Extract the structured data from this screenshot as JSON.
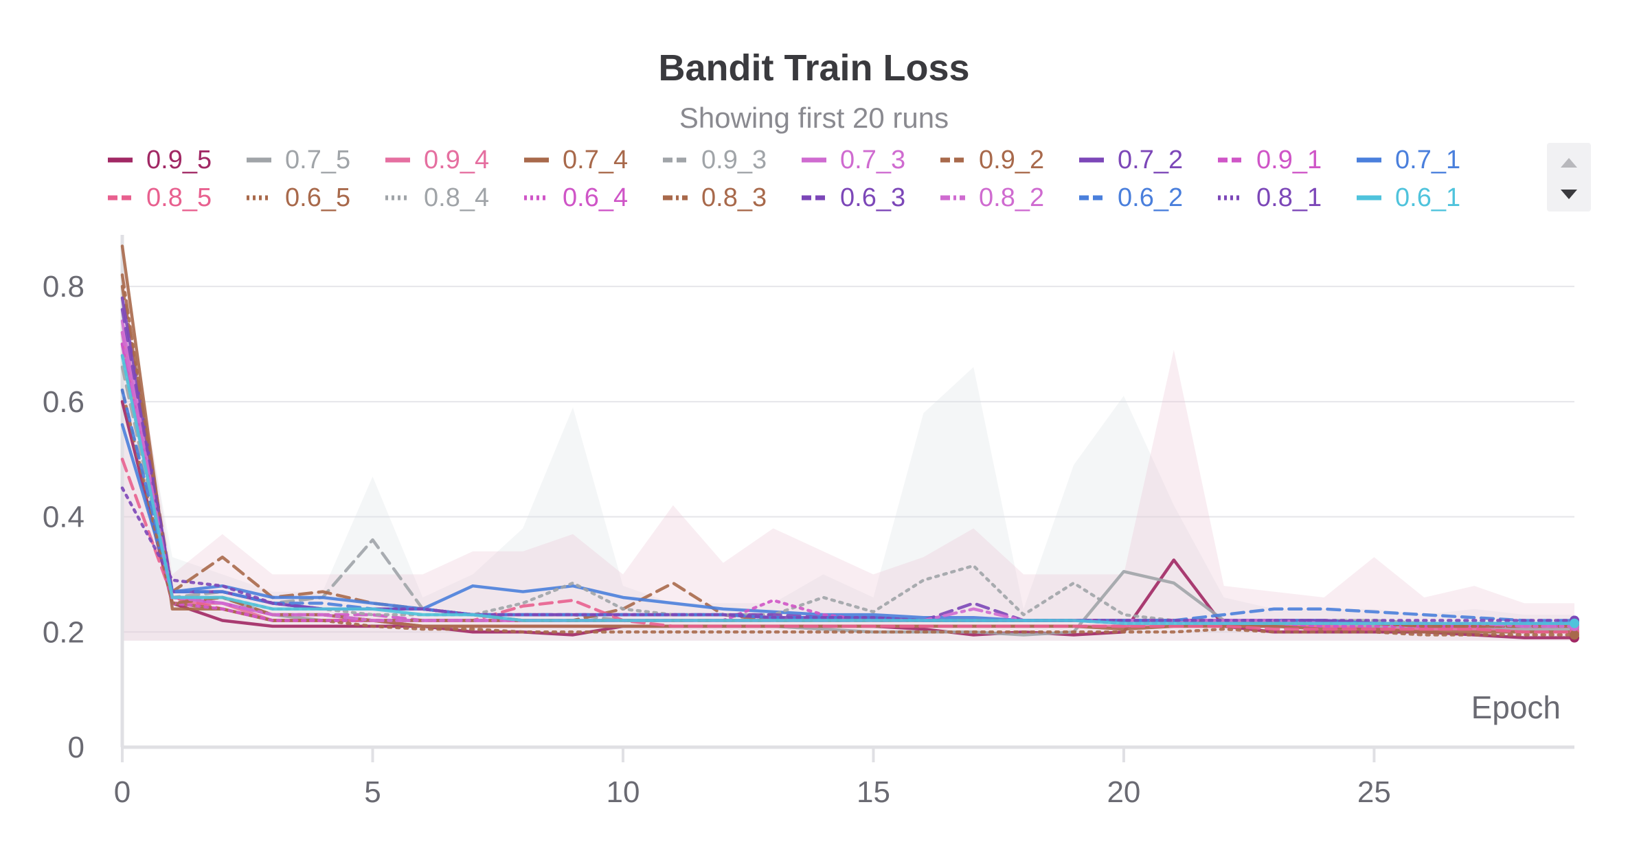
{
  "chart_data": {
    "type": "line",
    "title": "Bandit Train Loss",
    "subtitle": "Showing first 20 runs",
    "xlabel": "Epoch",
    "ylabel": "",
    "xlim": [
      0,
      29
    ],
    "ylim": [
      0,
      0.88
    ],
    "xticks": [
      0,
      5,
      10,
      15,
      20,
      25
    ],
    "yticks": [
      0,
      0.2,
      0.4,
      0.6,
      0.8
    ],
    "grid": "horizontal",
    "legend_position": "top",
    "x": [
      0,
      1,
      2,
      3,
      4,
      5,
      6,
      7,
      8,
      9,
      10,
      11,
      12,
      13,
      14,
      15,
      16,
      17,
      18,
      19,
      20,
      21,
      22,
      23,
      24,
      25,
      26,
      27,
      28,
      29
    ],
    "series": [
      {
        "name": "0.9_5",
        "color": "#a12864",
        "dash": "solid",
        "values": [
          0.6,
          0.25,
          0.22,
          0.21,
          0.21,
          0.21,
          0.21,
          0.2,
          0.2,
          0.195,
          0.21,
          0.21,
          0.21,
          0.21,
          0.21,
          0.21,
          0.205,
          0.195,
          0.2,
          0.195,
          0.2,
          0.325,
          0.21,
          0.2,
          0.2,
          0.2,
          0.2,
          0.195,
          0.19,
          0.19
        ]
      },
      {
        "name": "0.7_5",
        "color": "#a0a4a8",
        "dash": "solid",
        "values": [
          0.7,
          0.26,
          0.26,
          0.23,
          0.22,
          0.22,
          0.21,
          0.21,
          0.21,
          0.21,
          0.21,
          0.21,
          0.21,
          0.21,
          0.205,
          0.2,
          0.2,
          0.2,
          0.195,
          0.2,
          0.305,
          0.285,
          0.22,
          0.21,
          0.21,
          0.21,
          0.205,
          0.205,
          0.205,
          0.205
        ]
      },
      {
        "name": "0.9_4",
        "color": "#e56fa0",
        "dash": "solid",
        "values": [
          0.72,
          0.25,
          0.25,
          0.22,
          0.22,
          0.22,
          0.21,
          0.21,
          0.21,
          0.21,
          0.21,
          0.21,
          0.21,
          0.21,
          0.21,
          0.21,
          0.21,
          0.21,
          0.21,
          0.21,
          0.21,
          0.21,
          0.21,
          0.21,
          0.21,
          0.205,
          0.205,
          0.205,
          0.2,
          0.2
        ]
      },
      {
        "name": "0.7_4",
        "color": "#a8694b",
        "dash": "solid",
        "values": [
          0.87,
          0.24,
          0.24,
          0.22,
          0.22,
          0.22,
          0.21,
          0.21,
          0.21,
          0.21,
          0.21,
          0.21,
          0.21,
          0.21,
          0.21,
          0.21,
          0.21,
          0.21,
          0.21,
          0.21,
          0.205,
          0.21,
          0.21,
          0.21,
          0.205,
          0.205,
          0.2,
          0.2,
          0.2,
          0.2
        ]
      },
      {
        "name": "0.9_3",
        "color": "#a0a4a8",
        "dash": "dashed",
        "values": [
          0.66,
          0.26,
          0.27,
          0.25,
          0.26,
          0.36,
          0.24,
          0.23,
          0.23,
          0.23,
          0.22,
          0.22,
          0.22,
          0.22,
          0.22,
          0.22,
          0.22,
          0.22,
          0.22,
          0.22,
          0.22,
          0.22,
          0.22,
          0.22,
          0.22,
          0.22,
          0.215,
          0.215,
          0.215,
          0.215
        ]
      },
      {
        "name": "0.7_3",
        "color": "#cf6bd0",
        "dash": "solid",
        "values": [
          0.74,
          0.26,
          0.25,
          0.23,
          0.23,
          0.22,
          0.22,
          0.22,
          0.22,
          0.22,
          0.22,
          0.22,
          0.22,
          0.22,
          0.22,
          0.22,
          0.22,
          0.22,
          0.22,
          0.22,
          0.22,
          0.22,
          0.215,
          0.215,
          0.215,
          0.215,
          0.21,
          0.21,
          0.21,
          0.21
        ]
      },
      {
        "name": "0.9_2",
        "color": "#a8694b",
        "dash": "dashed",
        "values": [
          0.8,
          0.27,
          0.33,
          0.26,
          0.27,
          0.25,
          0.24,
          0.23,
          0.22,
          0.22,
          0.24,
          0.285,
          0.23,
          0.22,
          0.22,
          0.22,
          0.22,
          0.22,
          0.22,
          0.22,
          0.22,
          0.22,
          0.22,
          0.215,
          0.215,
          0.215,
          0.21,
          0.21,
          0.21,
          0.21
        ]
      },
      {
        "name": "0.7_2",
        "color": "#7c47b8",
        "dash": "solid",
        "values": [
          0.78,
          0.27,
          0.27,
          0.25,
          0.24,
          0.24,
          0.24,
          0.23,
          0.23,
          0.23,
          0.23,
          0.23,
          0.23,
          0.225,
          0.225,
          0.225,
          0.22,
          0.22,
          0.22,
          0.22,
          0.22,
          0.22,
          0.22,
          0.22,
          0.22,
          0.215,
          0.215,
          0.215,
          0.215,
          0.215
        ]
      },
      {
        "name": "0.9_1",
        "color": "#cf55c7",
        "dash": "dashed",
        "values": [
          0.7,
          0.26,
          0.25,
          0.23,
          0.23,
          0.23,
          0.22,
          0.22,
          0.22,
          0.22,
          0.22,
          0.22,
          0.22,
          0.22,
          0.22,
          0.22,
          0.22,
          0.22,
          0.22,
          0.22,
          0.22,
          0.22,
          0.22,
          0.215,
          0.215,
          0.215,
          0.215,
          0.215,
          0.21,
          0.21
        ]
      },
      {
        "name": "0.7_1",
        "color": "#4a7fdc",
        "dash": "solid",
        "values": [
          0.56,
          0.27,
          0.28,
          0.26,
          0.26,
          0.25,
          0.24,
          0.28,
          0.27,
          0.28,
          0.26,
          0.25,
          0.24,
          0.235,
          0.23,
          0.23,
          0.225,
          0.225,
          0.22,
          0.22,
          0.22,
          0.22,
          0.22,
          0.22,
          0.22,
          0.215,
          0.215,
          0.215,
          0.215,
          0.215
        ]
      },
      {
        "name": "0.8_5",
        "color": "#e8608f",
        "dash": "dashed",
        "values": [
          0.5,
          0.26,
          0.24,
          0.22,
          0.22,
          0.22,
          0.22,
          0.22,
          0.245,
          0.255,
          0.22,
          0.21,
          0.21,
          0.21,
          0.21,
          0.21,
          0.21,
          0.21,
          0.21,
          0.21,
          0.21,
          0.21,
          0.21,
          0.205,
          0.205,
          0.205,
          0.205,
          0.205,
          0.2,
          0.2
        ]
      },
      {
        "name": "0.6_5",
        "color": "#a8694b",
        "dash": "dotted",
        "values": [
          0.62,
          0.25,
          0.24,
          0.22,
          0.22,
          0.21,
          0.205,
          0.205,
          0.2,
          0.2,
          0.2,
          0.2,
          0.2,
          0.2,
          0.2,
          0.2,
          0.2,
          0.2,
          0.2,
          0.2,
          0.2,
          0.2,
          0.205,
          0.2,
          0.2,
          0.2,
          0.195,
          0.195,
          0.195,
          0.195
        ]
      },
      {
        "name": "0.8_4",
        "color": "#a0a4a8",
        "dash": "dotted",
        "values": [
          0.68,
          0.26,
          0.26,
          0.24,
          0.24,
          0.23,
          0.23,
          0.23,
          0.25,
          0.285,
          0.24,
          0.23,
          0.23,
          0.23,
          0.26,
          0.235,
          0.29,
          0.315,
          0.23,
          0.285,
          0.23,
          0.22,
          0.22,
          0.22,
          0.215,
          0.215,
          0.215,
          0.215,
          0.21,
          0.21
        ]
      },
      {
        "name": "0.6_4",
        "color": "#cf55c7",
        "dash": "dotted",
        "values": [
          0.7,
          0.25,
          0.24,
          0.22,
          0.22,
          0.22,
          0.22,
          0.22,
          0.22,
          0.22,
          0.22,
          0.22,
          0.22,
          0.255,
          0.23,
          0.22,
          0.22,
          0.22,
          0.22,
          0.22,
          0.215,
          0.215,
          0.215,
          0.215,
          0.21,
          0.21,
          0.21,
          0.21,
          0.21,
          0.21
        ]
      },
      {
        "name": "0.8_3",
        "color": "#a8694b",
        "dash": "dashdot",
        "values": [
          0.82,
          0.25,
          0.26,
          0.23,
          0.23,
          0.22,
          0.22,
          0.22,
          0.22,
          0.22,
          0.22,
          0.22,
          0.22,
          0.22,
          0.22,
          0.22,
          0.22,
          0.22,
          0.22,
          0.22,
          0.22,
          0.22,
          0.22,
          0.215,
          0.215,
          0.215,
          0.21,
          0.21,
          0.21,
          0.21
        ]
      },
      {
        "name": "0.6_3",
        "color": "#7c47b8",
        "dash": "dashed",
        "values": [
          0.76,
          0.27,
          0.27,
          0.25,
          0.24,
          0.24,
          0.24,
          0.23,
          0.23,
          0.23,
          0.23,
          0.23,
          0.23,
          0.23,
          0.225,
          0.225,
          0.22,
          0.25,
          0.22,
          0.22,
          0.22,
          0.22,
          0.22,
          0.22,
          0.22,
          0.215,
          0.215,
          0.215,
          0.215,
          0.215
        ]
      },
      {
        "name": "0.8_2",
        "color": "#cf6bd0",
        "dash": "dashdot",
        "values": [
          0.72,
          0.26,
          0.25,
          0.23,
          0.23,
          0.22,
          0.22,
          0.22,
          0.22,
          0.22,
          0.22,
          0.22,
          0.22,
          0.22,
          0.22,
          0.22,
          0.22,
          0.24,
          0.22,
          0.22,
          0.22,
          0.22,
          0.22,
          0.22,
          0.215,
          0.215,
          0.215,
          0.215,
          0.21,
          0.21
        ]
      },
      {
        "name": "0.6_2",
        "color": "#4a7fdc",
        "dash": "dashed",
        "values": [
          0.62,
          0.27,
          0.27,
          0.25,
          0.25,
          0.24,
          0.24,
          0.23,
          0.23,
          0.23,
          0.23,
          0.23,
          0.23,
          0.225,
          0.225,
          0.225,
          0.22,
          0.22,
          0.22,
          0.22,
          0.22,
          0.22,
          0.23,
          0.24,
          0.24,
          0.235,
          0.23,
          0.225,
          0.22,
          0.22
        ]
      },
      {
        "name": "0.8_1",
        "color": "#7c47b8",
        "dash": "dotted",
        "values": [
          0.45,
          0.29,
          0.28,
          0.25,
          0.24,
          0.24,
          0.24,
          0.23,
          0.23,
          0.23,
          0.23,
          0.23,
          0.23,
          0.225,
          0.225,
          0.225,
          0.22,
          0.22,
          0.22,
          0.22,
          0.22,
          0.22,
          0.22,
          0.22,
          0.22,
          0.22,
          0.22,
          0.22,
          0.22,
          0.22
        ]
      },
      {
        "name": "0.6_1",
        "color": "#4fc3dc",
        "dash": "solid",
        "values": [
          0.68,
          0.26,
          0.26,
          0.24,
          0.24,
          0.24,
          0.23,
          0.23,
          0.22,
          0.22,
          0.22,
          0.22,
          0.22,
          0.22,
          0.22,
          0.22,
          0.22,
          0.22,
          0.22,
          0.22,
          0.215,
          0.215,
          0.215,
          0.215,
          0.215,
          0.215,
          0.215,
          0.215,
          0.215,
          0.215
        ]
      }
    ],
    "bands": [
      {
        "color": "#d9dde3",
        "max": [
          0.8,
          0.33,
          0.3,
          0.27,
          0.27,
          0.47,
          0.26,
          0.3,
          0.38,
          0.59,
          0.28,
          0.25,
          0.25,
          0.25,
          0.3,
          0.26,
          0.58,
          0.66,
          0.24,
          0.49,
          0.61,
          0.42,
          0.26,
          0.24,
          0.24,
          0.24,
          0.23,
          0.24,
          0.23,
          0.23
        ]
      },
      {
        "color": "#e8bfcf",
        "max": [
          0.86,
          0.3,
          0.37,
          0.3,
          0.3,
          0.3,
          0.3,
          0.34,
          0.34,
          0.37,
          0.3,
          0.42,
          0.32,
          0.38,
          0.34,
          0.3,
          0.33,
          0.38,
          0.3,
          0.3,
          0.3,
          0.69,
          0.28,
          0.27,
          0.26,
          0.33,
          0.26,
          0.28,
          0.25,
          0.25
        ]
      }
    ]
  }
}
